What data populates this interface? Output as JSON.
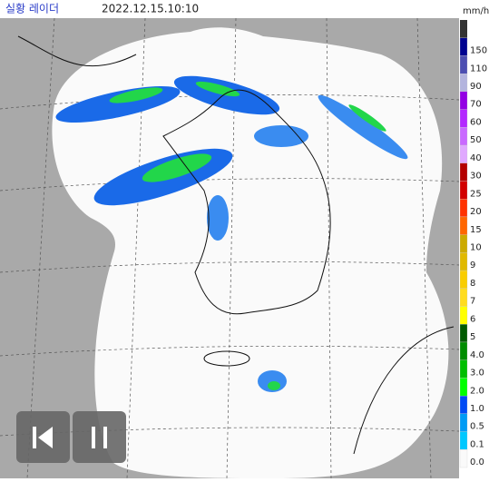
{
  "header": {
    "title": "실황 레이더",
    "timestamp": "2022.12.15.10:10",
    "unit": "mm/h"
  },
  "legend": {
    "overflow_color": "#333333",
    "items": [
      {
        "label": "150",
        "color": "#000390"
      },
      {
        "label": "110",
        "color": "#4c4eb1"
      },
      {
        "label": "90",
        "color": "#b3b4de"
      },
      {
        "label": "70",
        "color": "#9300e4"
      },
      {
        "label": "60",
        "color": "#b329ff"
      },
      {
        "label": "50",
        "color": "#c969ff"
      },
      {
        "label": "40",
        "color": "#e0a9ff"
      },
      {
        "label": "30",
        "color": "#b40000"
      },
      {
        "label": "25",
        "color": "#d20000"
      },
      {
        "label": "20",
        "color": "#ff3200"
      },
      {
        "label": "15",
        "color": "#ff6600"
      },
      {
        "label": "10",
        "color": "#ccaa00"
      },
      {
        "label": "9",
        "color": "#e0b900"
      },
      {
        "label": "8",
        "color": "#f9cd00"
      },
      {
        "label": "7",
        "color": "#ffdc1f"
      },
      {
        "label": "6",
        "color": "#ffff00"
      },
      {
        "label": "5",
        "color": "#005a00"
      },
      {
        "label": "4.0",
        "color": "#008c00"
      },
      {
        "label": "3.0",
        "color": "#00be00"
      },
      {
        "label": "2.0",
        "color": "#00ff00"
      },
      {
        "label": "1.0",
        "color": "#004af5"
      },
      {
        "label": "0.5",
        "color": "#009bf5"
      },
      {
        "label": "0.1",
        "color": "#00c8ff"
      },
      {
        "label": "0.0",
        "color": "#fafafa"
      }
    ]
  }
}
